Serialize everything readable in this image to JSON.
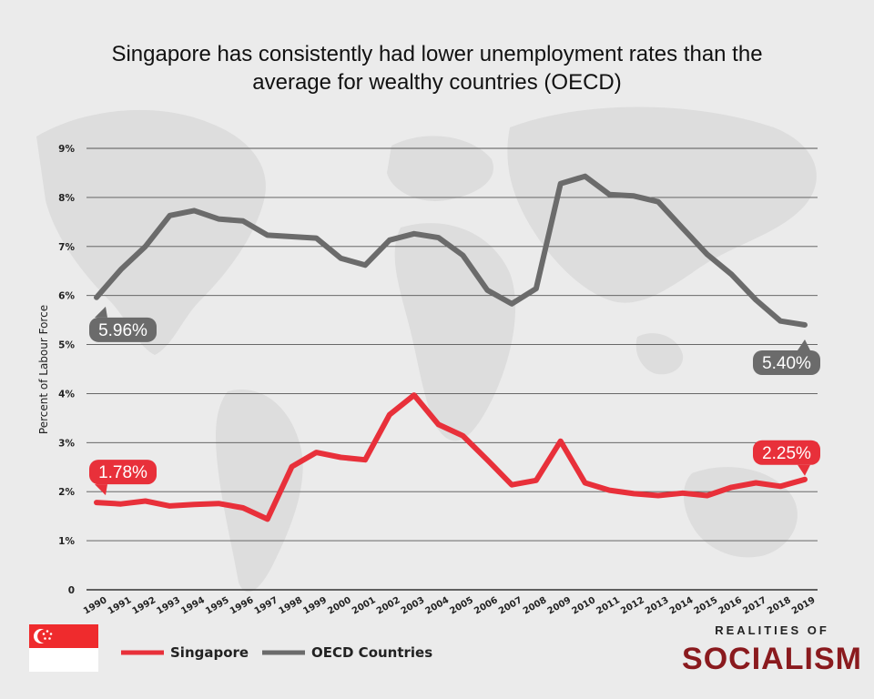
{
  "chart_data": {
    "type": "line",
    "title_lines": [
      "Singapore has consistently had lower unemployment rates than the",
      "average for wealthy countries (OECD)"
    ],
    "ylabel": "Percent of Labour Force",
    "xlabel": "",
    "ylim": [
      0,
      9
    ],
    "y_ticks": [
      {
        "value": 0,
        "label": "0"
      },
      {
        "value": 1,
        "label": "1%"
      },
      {
        "value": 2,
        "label": "2%"
      },
      {
        "value": 3,
        "label": "3%"
      },
      {
        "value": 4,
        "label": "4%"
      },
      {
        "value": 5,
        "label": "5%"
      },
      {
        "value": 6,
        "label": "6%"
      },
      {
        "value": 7,
        "label": "7%"
      },
      {
        "value": 8,
        "label": "8%"
      },
      {
        "value": 9,
        "label": "9%"
      }
    ],
    "categories": [
      "1990",
      "1991",
      "1992",
      "1993",
      "1994",
      "1995",
      "1996",
      "1997",
      "1998",
      "1999",
      "2000",
      "2001",
      "2002",
      "2003",
      "2004",
      "2005",
      "2006",
      "2007",
      "2008",
      "2009",
      "2010",
      "2011",
      "2012",
      "2013",
      "2014",
      "2015",
      "2016",
      "2017",
      "2018",
      "2019"
    ],
    "grid": true,
    "legend_position": "bottom",
    "series": [
      {
        "name": "Singapore",
        "color": "#e8303a",
        "values": [
          1.78,
          1.75,
          1.81,
          1.71,
          1.74,
          1.76,
          1.67,
          1.44,
          2.51,
          2.8,
          2.7,
          2.65,
          3.57,
          3.97,
          3.37,
          3.14,
          2.65,
          2.14,
          2.23,
          3.03,
          2.18,
          2.03,
          1.96,
          1.92,
          1.97,
          1.92,
          2.09,
          2.18,
          2.11,
          2.25
        ]
      },
      {
        "name": "OECD Countries",
        "color": "#6b6b6b",
        "values": [
          5.96,
          6.53,
          7.0,
          7.63,
          7.73,
          7.56,
          7.52,
          7.23,
          7.2,
          7.17,
          6.76,
          6.62,
          7.13,
          7.26,
          7.18,
          6.82,
          6.11,
          5.83,
          6.14,
          8.28,
          8.43,
          8.06,
          8.03,
          7.91,
          7.37,
          6.84,
          6.43,
          5.91,
          5.48,
          5.4
        ]
      }
    ],
    "callouts": [
      {
        "series": 1,
        "index": 0,
        "label": "5.96%"
      },
      {
        "series": 1,
        "index": 29,
        "label": "5.40%"
      },
      {
        "series": 0,
        "index": 0,
        "label": "1.78%"
      },
      {
        "series": 0,
        "index": 29,
        "label": "2.25%"
      }
    ]
  },
  "branding": {
    "top": "REALITIES OF",
    "main": "SOCIALISM"
  },
  "flag": {
    "name": "Singapore flag",
    "top_color": "#ef2b2d",
    "bottom_color": "#ffffff"
  }
}
